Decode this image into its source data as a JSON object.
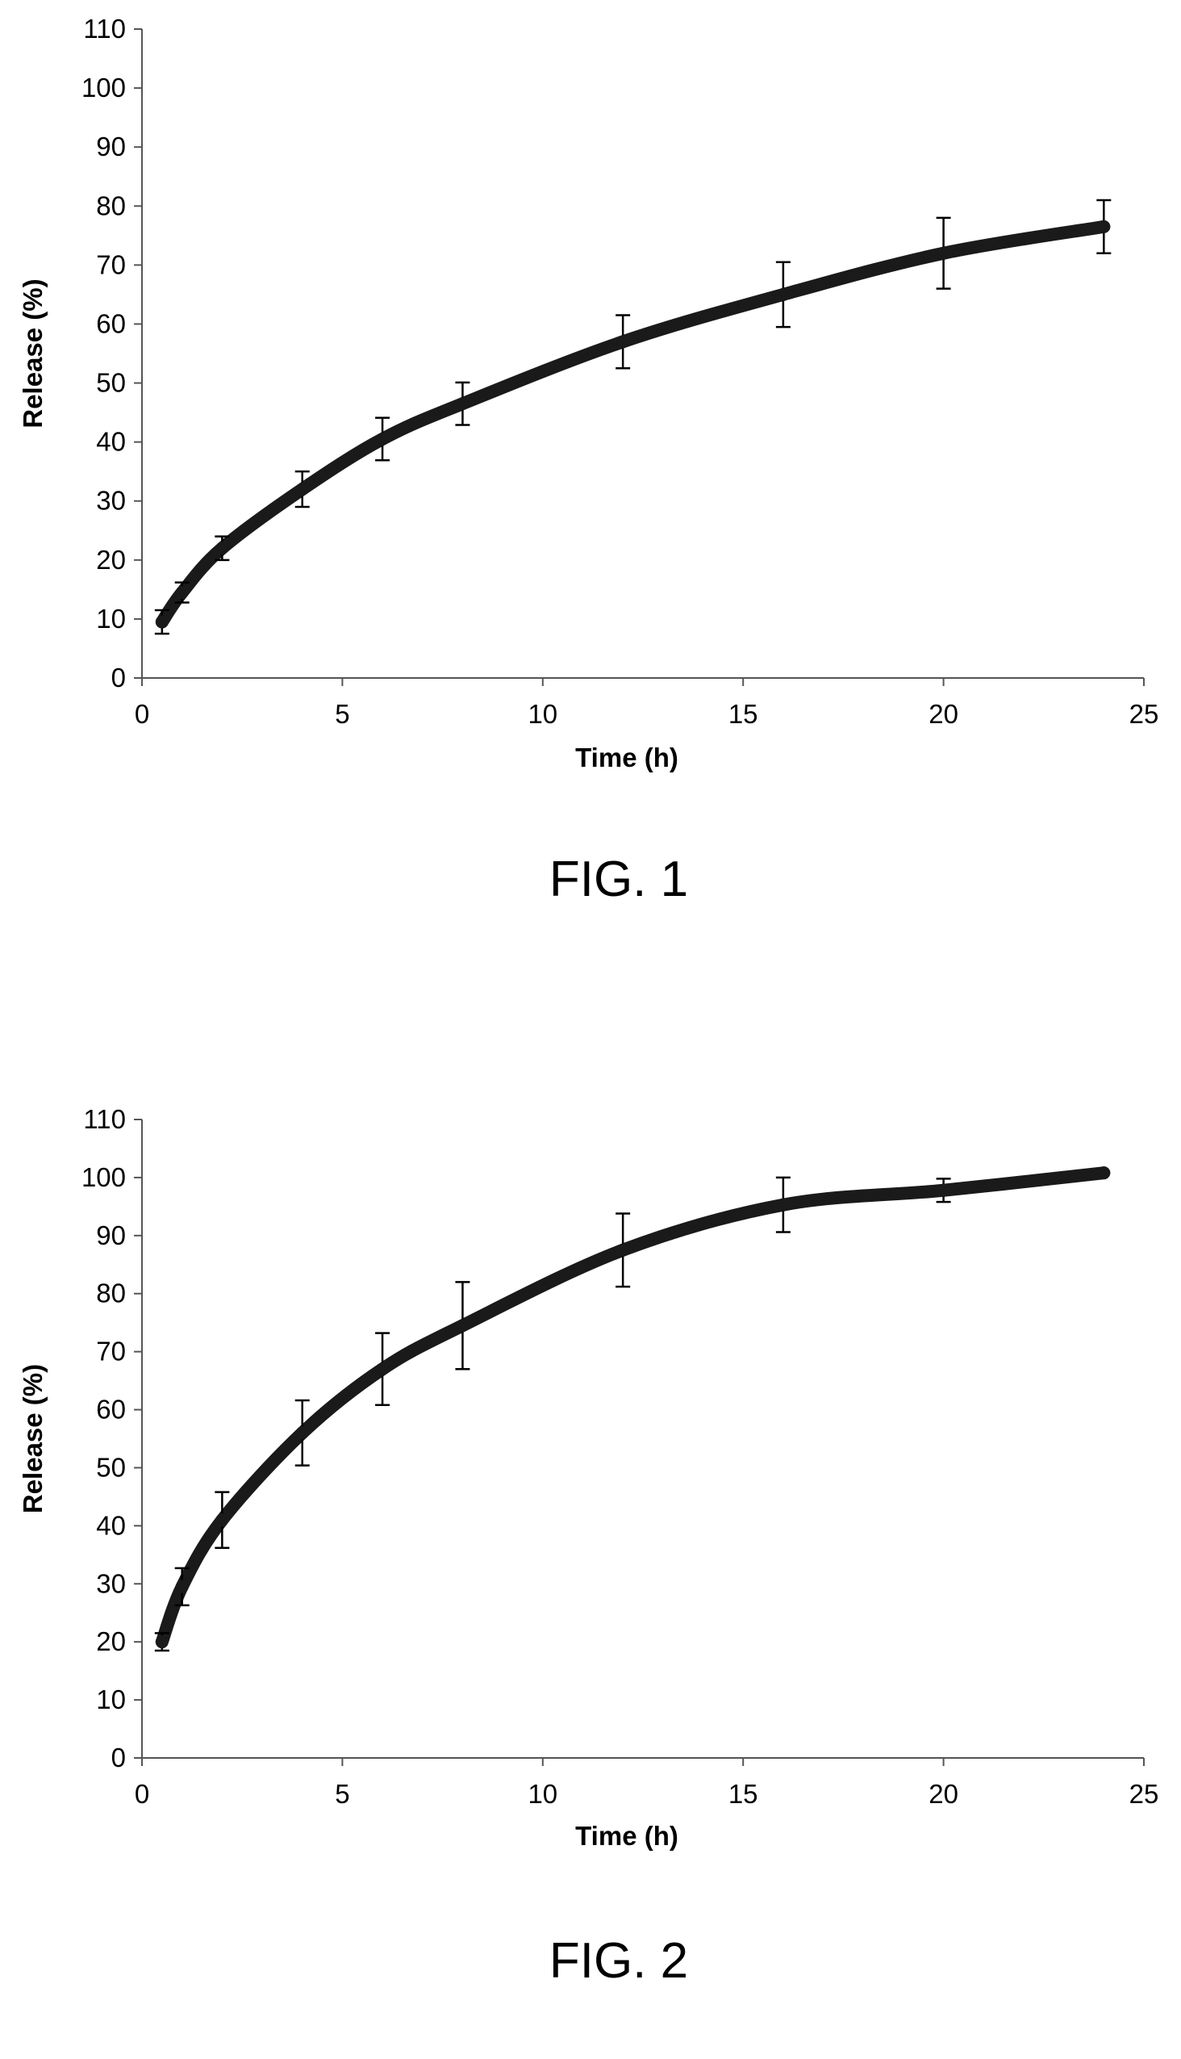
{
  "chart_data": [
    {
      "type": "line",
      "caption": "FIG. 1",
      "xlabel": "Time (h)",
      "ylabel": "Release (%)",
      "xlim": [
        0,
        25
      ],
      "ylim": [
        0,
        110
      ],
      "xticks": [
        "0",
        "5",
        "10",
        "15",
        "20",
        "25"
      ],
      "yticks": [
        "0",
        "10",
        "20",
        "30",
        "40",
        "50",
        "60",
        "70",
        "80",
        "90",
        "100",
        "110"
      ],
      "grid": false,
      "legend": "none",
      "line_color": "#1a1a1a",
      "series": [
        {
          "x": [
            0.5,
            1,
            2,
            4,
            6,
            8,
            12,
            16,
            20,
            24
          ],
          "y": [
            9.5,
            14.5,
            22,
            32,
            40.5,
            46.5,
            57,
            65,
            72,
            76.5
          ],
          "error": [
            2,
            1.7,
            2,
            3,
            3.6,
            3.6,
            4.5,
            5.5,
            6,
            4.5
          ]
        }
      ]
    },
    {
      "type": "line",
      "caption": "FIG. 2",
      "xlabel": "Time (h)",
      "ylabel": "Release (%)",
      "xlim": [
        0,
        25
      ],
      "ylim": [
        0,
        110
      ],
      "xticks": [
        "0",
        "5",
        "10",
        "15",
        "20",
        "25"
      ],
      "yticks": [
        "0",
        "10",
        "20",
        "30",
        "40",
        "50",
        "60",
        "70",
        "80",
        "90",
        "100",
        "110"
      ],
      "grid": false,
      "legend": "none",
      "line_color": "#1a1a1a",
      "series": [
        {
          "x": [
            0.5,
            1,
            2,
            4,
            6,
            8,
            12,
            16,
            20,
            24
          ],
          "y": [
            20,
            29.5,
            41,
            56,
            67,
            74.5,
            87.5,
            95.3,
            97.8,
            100.8
          ],
          "error": [
            1.5,
            3.2,
            4.8,
            5.6,
            6.2,
            7.5,
            6.3,
            4.7,
            2,
            0
          ]
        }
      ]
    }
  ]
}
